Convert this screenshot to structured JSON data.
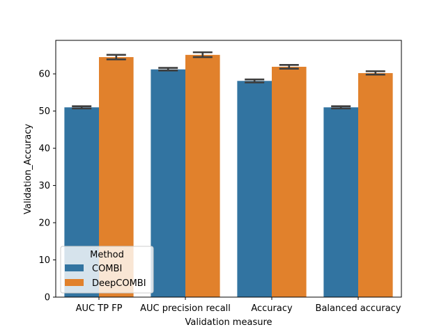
{
  "chart_data": {
    "type": "bar",
    "title": "",
    "xlabel": "Validation measure",
    "ylabel": "Validation_Accuracy",
    "categories": [
      "AUC TP FP",
      "AUC precision recall",
      "Accuracy",
      "Balanced accuracy"
    ],
    "series": [
      {
        "name": "COMBI",
        "color": "#3274a1",
        "values": [
          51.0,
          61.2,
          58.1,
          51.0
        ],
        "err_low": [
          50.7,
          60.9,
          57.7,
          50.7
        ],
        "err_high": [
          51.3,
          61.6,
          58.5,
          51.3
        ]
      },
      {
        "name": "DeepCOMBI",
        "color": "#e1812c",
        "values": [
          64.5,
          65.1,
          61.9,
          60.2
        ],
        "err_low": [
          63.9,
          64.5,
          61.4,
          59.8
        ],
        "err_high": [
          65.1,
          65.8,
          62.4,
          60.7
        ]
      }
    ],
    "ylim": [
      0,
      69
    ],
    "yticks": [
      0,
      10,
      20,
      30,
      40,
      50,
      60
    ],
    "grid": false,
    "legend": {
      "title": "Method",
      "placement": "lower-left"
    },
    "error_bar_color": "#3d3d3d"
  }
}
